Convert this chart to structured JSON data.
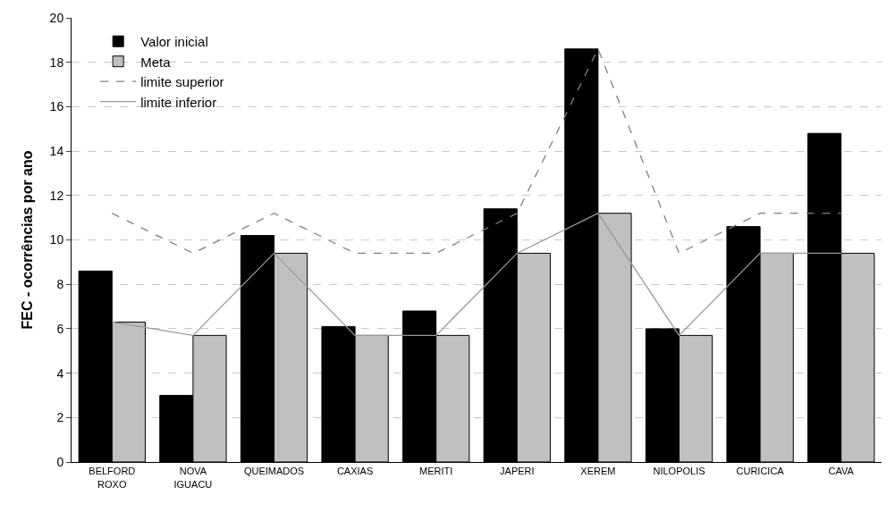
{
  "chart_data": {
    "type": "bar",
    "ylabel": "FEC - ocorrências por ano",
    "categories": [
      "BELFORD\nROXO",
      "NOVA\nIGUACU",
      "QUEIMADOS",
      "CAXIAS",
      "MERITI",
      "JAPERI",
      "XEREM",
      "NILOPOLIS",
      "CURICICA",
      "CAVA"
    ],
    "series": [
      {
        "name": "Valor inicial",
        "color": "#000000",
        "values": [
          8.6,
          3.0,
          10.2,
          6.1,
          6.8,
          11.4,
          18.6,
          6.0,
          10.6,
          14.8
        ]
      },
      {
        "name": "Meta",
        "color": "#c0c0c0",
        "values": [
          6.3,
          5.7,
          9.4,
          5.7,
          5.7,
          9.4,
          11.2,
          5.7,
          9.4,
          9.4
        ]
      },
      {
        "name": "limite superior",
        "type": "line",
        "line_style": "dashed",
        "color": "#808080",
        "values": [
          11.2,
          9.4,
          11.2,
          9.4,
          9.4,
          11.2,
          18.6,
          9.4,
          11.2,
          11.2
        ]
      },
      {
        "name": "limite inferior",
        "type": "line",
        "line_style": "solid",
        "color": "#999999",
        "values": [
          6.3,
          5.7,
          9.4,
          5.7,
          5.7,
          9.4,
          11.2,
          5.7,
          9.4,
          9.4
        ]
      }
    ],
    "ylim": [
      0,
      20
    ],
    "yticks": [
      0,
      2,
      4,
      6,
      8,
      10,
      12,
      14,
      16,
      18,
      20
    ],
    "grid": "y",
    "legend": "top left"
  }
}
